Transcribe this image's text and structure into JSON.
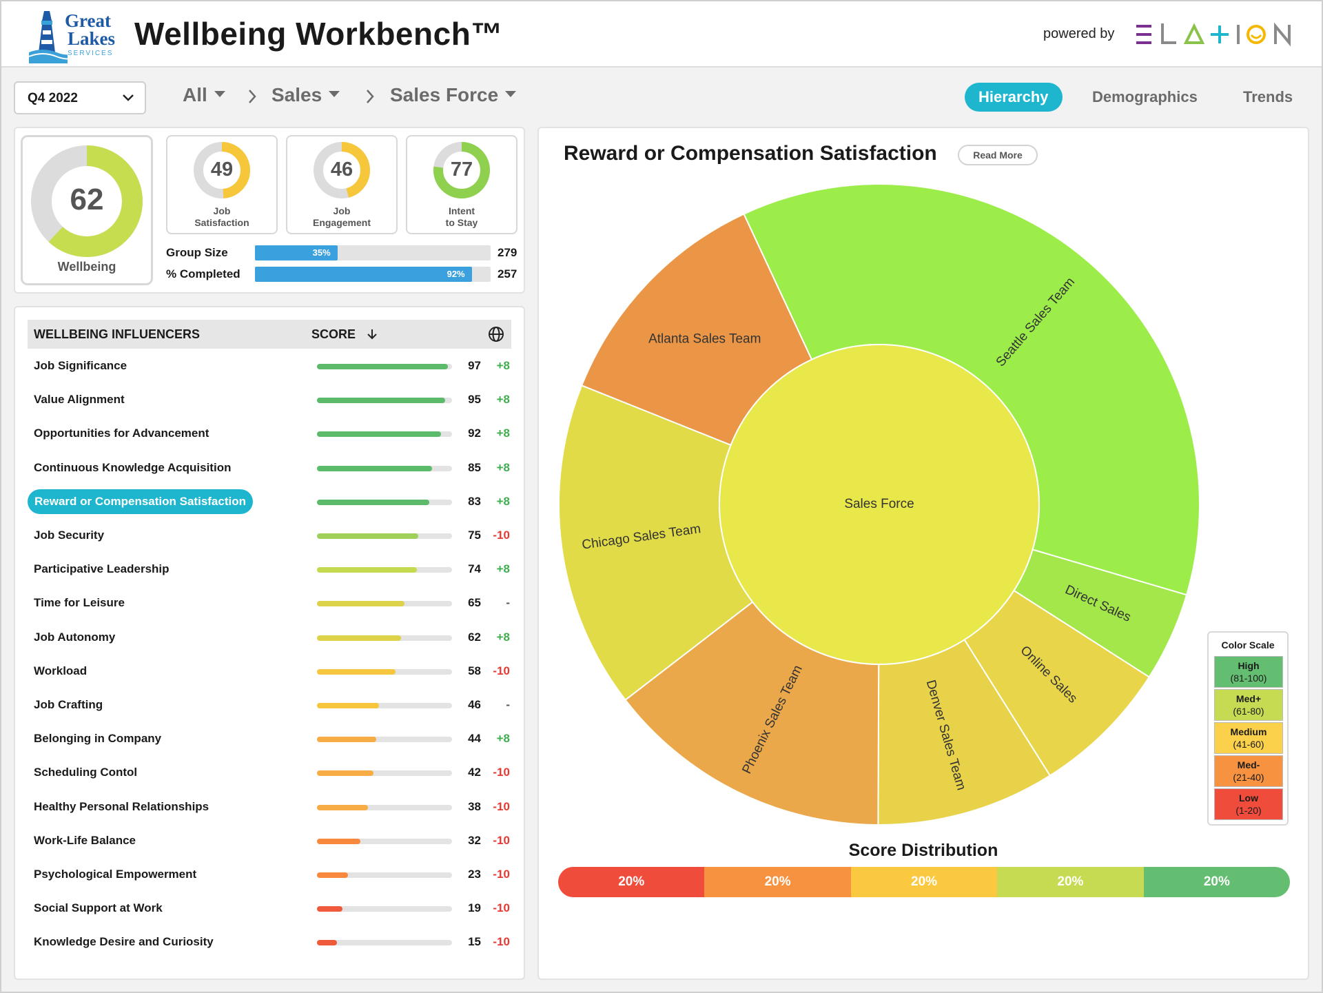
{
  "header": {
    "logo_line1": "Great",
    "logo_line2": "Lakes",
    "logo_line3": "SERVICES",
    "title": "Wellbeing Workbench™",
    "powered_by": "powered by",
    "brand": "ELATION"
  },
  "filters": {
    "quarter": "Q4 2022",
    "breadcrumb": [
      "All",
      "Sales",
      "Sales Force"
    ]
  },
  "tabs": [
    {
      "label": "Hierarchy",
      "active": true
    },
    {
      "label": "Demographics",
      "active": false
    },
    {
      "label": "Trends",
      "active": false
    }
  ],
  "summary": {
    "wellbeing": {
      "value": "62",
      "label": "Wellbeing"
    },
    "metrics": [
      {
        "value": "49",
        "label_line1": "Job",
        "label_line2": "Satisfaction",
        "color": "#f7c73b"
      },
      {
        "value": "46",
        "label_line1": "Job",
        "label_line2": "Engagement",
        "color": "#f7c73b"
      },
      {
        "value": "77",
        "label_line1": "Intent",
        "label_line2": "to Stay",
        "color": "#8fd14f"
      }
    ],
    "group_size": {
      "label": "Group Size",
      "percent": 35,
      "percent_label": "35%",
      "count": "279"
    },
    "completed": {
      "label": "% Completed",
      "percent": 92,
      "percent_label": "92%",
      "count": "257"
    }
  },
  "influencers": {
    "header_name": "WELLBEING INFLUENCERS",
    "header_score": "SCORE",
    "selected": "Reward or Compensation Satisfaction",
    "rows": [
      {
        "name": "Job Significance",
        "score": "97",
        "delta": "+8"
      },
      {
        "name": "Value Alignment",
        "score": "95",
        "delta": "+8"
      },
      {
        "name": "Opportunities for Advancement",
        "score": "92",
        "delta": "+8"
      },
      {
        "name": "Continuous Knowledge Acquisition",
        "score": "85",
        "delta": "+8"
      },
      {
        "name": "Reward or Compensation Satisfaction",
        "score": "83",
        "delta": "+8"
      },
      {
        "name": "Job Security",
        "score": "75",
        "delta": "-10"
      },
      {
        "name": "Participative Leadership",
        "score": "74",
        "delta": "+8"
      },
      {
        "name": "Time for Leisure",
        "score": "65",
        "delta": "-"
      },
      {
        "name": "Job Autonomy",
        "score": "62",
        "delta": "+8"
      },
      {
        "name": "Workload",
        "score": "58",
        "delta": "-10"
      },
      {
        "name": "Job Crafting",
        "score": "46",
        "delta": "-"
      },
      {
        "name": "Belonging in Company",
        "score": "44",
        "delta": "+8"
      },
      {
        "name": "Scheduling Contol",
        "score": "42",
        "delta": "-10"
      },
      {
        "name": "Healthy Personal Relationships",
        "score": "38",
        "delta": "-10"
      },
      {
        "name": "Work-Life Balance",
        "score": "32",
        "delta": "-10"
      },
      {
        "name": "Psychological Empowerment",
        "score": "23",
        "delta": "-10"
      },
      {
        "name": "Social Support at Work",
        "score": "19",
        "delta": "-10"
      },
      {
        "name": "Knowledge Desire and Curiosity",
        "score": "15",
        "delta": "-10"
      }
    ]
  },
  "chart_data": {
    "type": "sunburst",
    "title": "Reward or Compensation Satisfaction",
    "read_more": "Read More",
    "center": {
      "name": "Sales Force",
      "color": "#e9e84a"
    },
    "segments": [
      {
        "name": "Seattle Sales Team",
        "share": 0.365,
        "color": "#9ced4a"
      },
      {
        "name": "Direct Sales",
        "share": 0.045,
        "color": "#a3e74b"
      },
      {
        "name": "Online Sales",
        "share": 0.07,
        "color": "#e8d54a"
      },
      {
        "name": "Denver Sales Team",
        "share": 0.09,
        "color": "#e8d24a"
      },
      {
        "name": "Phoenix Sales Team",
        "share": 0.145,
        "color": "#eba84a"
      },
      {
        "name": "Chicago Sales Team",
        "share": 0.165,
        "color": "#e1db47"
      },
      {
        "name": "Atlanta Sales Team",
        "share": 0.12,
        "color": "#ea9646"
      }
    ],
    "color_scale": {
      "title": "Color Scale",
      "items": [
        {
          "label": "High",
          "range": "(81-100)",
          "color": "#63be72"
        },
        {
          "label": "Med+",
          "range": "(61-80)",
          "color": "#c7db52"
        },
        {
          "label": "Medium",
          "range": "(41-60)",
          "color": "#fbd04a"
        },
        {
          "label": "Med-",
          "range": "(21-40)",
          "color": "#f79240"
        },
        {
          "label": "Low",
          "range": "(1-20)",
          "color": "#ef4c3c"
        }
      ]
    },
    "distribution": {
      "title": "Score Distribution",
      "segments": [
        {
          "label": "20%",
          "value": 20,
          "color": "#ef4c3c"
        },
        {
          "label": "20%",
          "value": 20,
          "color": "#f79240"
        },
        {
          "label": "20%",
          "value": 20,
          "color": "#fbc93f"
        },
        {
          "label": "20%",
          "value": 20,
          "color": "#c7db52"
        },
        {
          "label": "20%",
          "value": 20,
          "color": "#63be72"
        }
      ]
    }
  }
}
